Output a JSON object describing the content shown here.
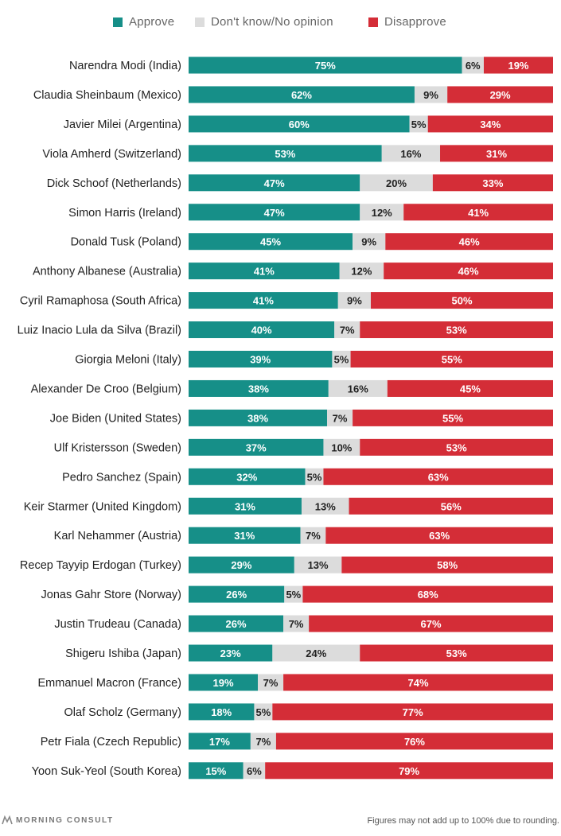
{
  "colors": {
    "approve": "#168f88",
    "dont_know": "#dcdcdc",
    "disapprove": "#d42d37"
  },
  "legend": [
    {
      "key": "approve",
      "label": "Approve"
    },
    {
      "key": "dont_know",
      "label": "Don't know/No opinion"
    },
    {
      "key": "disapprove",
      "label": "Disapprove"
    }
  ],
  "footer": {
    "brand": "MORNING CONSULT",
    "brand_icon": "morning-consult-logo-icon",
    "note": "Figures may not add up to 100% due to rounding."
  },
  "chart_data": {
    "type": "bar",
    "orientation": "horizontal",
    "stacked": true,
    "title": "",
    "xlabel": "",
    "ylabel": "",
    "xlim": [
      0,
      100
    ],
    "unit": "%",
    "grid": false,
    "legend_position": "top",
    "categories": [
      "Narendra Modi (India)",
      "Claudia Sheinbaum (Mexico)",
      "Javier Milei (Argentina)",
      "Viola Amherd (Switzerland)",
      "Dick Schoof (Netherlands)",
      "Simon Harris (Ireland)",
      "Donald Tusk (Poland)",
      "Anthony Albanese (Australia)",
      "Cyril Ramaphosa (South Africa)",
      "Luiz Inacio Lula da Silva (Brazil)",
      "Giorgia Meloni (Italy)",
      "Alexander De Croo (Belgium)",
      "Joe Biden (United States)",
      "Ulf Kristersson (Sweden)",
      "Pedro Sanchez (Spain)",
      "Keir Starmer (United Kingdom)",
      "Karl Nehammer (Austria)",
      "Recep Tayyip Erdogan (Turkey)",
      "Jonas Gahr Store (Norway)",
      "Justin Trudeau (Canada)",
      "Shigeru Ishiba (Japan)",
      "Emmanuel Macron (France)",
      "Olaf Scholz (Germany)",
      "Petr Fiala (Czech Republic)",
      "Yoon Suk-Yeol (South Korea)"
    ],
    "series": [
      {
        "name": "Approve",
        "key": "approve",
        "values": [
          75,
          62,
          60,
          53,
          47,
          47,
          45,
          41,
          41,
          40,
          39,
          38,
          38,
          37,
          32,
          31,
          31,
          29,
          26,
          26,
          23,
          19,
          18,
          17,
          15
        ]
      },
      {
        "name": "Don't know/No opinion",
        "key": "dont_know",
        "values": [
          6,
          9,
          5,
          16,
          20,
          12,
          9,
          12,
          9,
          7,
          5,
          16,
          7,
          10,
          5,
          13,
          7,
          13,
          5,
          7,
          24,
          7,
          5,
          7,
          6
        ]
      },
      {
        "name": "Disapprove",
        "key": "disapprove",
        "values": [
          19,
          29,
          34,
          31,
          33,
          41,
          46,
          46,
          50,
          53,
          55,
          45,
          55,
          53,
          63,
          56,
          63,
          58,
          68,
          67,
          53,
          74,
          77,
          76,
          79
        ]
      }
    ]
  }
}
